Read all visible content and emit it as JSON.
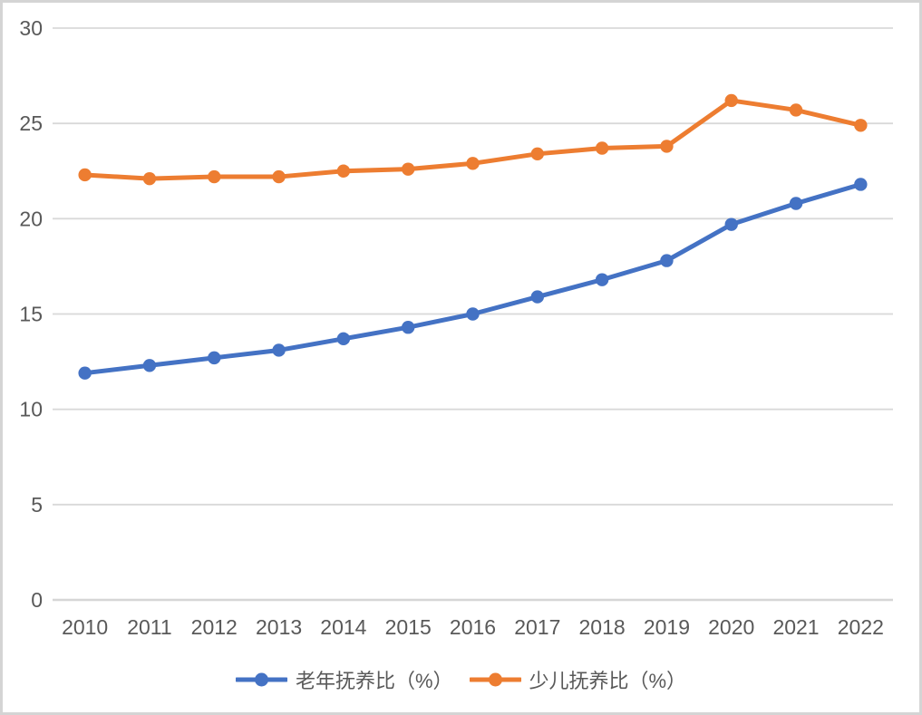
{
  "chart_data": {
    "type": "line",
    "title": "",
    "xlabel": "",
    "ylabel": "",
    "categories": [
      "2010",
      "2011",
      "2012",
      "2013",
      "2014",
      "2015",
      "2016",
      "2017",
      "2018",
      "2019",
      "2020",
      "2021",
      "2022"
    ],
    "series": [
      {
        "name": "老年抚养比（%）",
        "color": "#4472C4",
        "values": [
          11.9,
          12.3,
          12.7,
          13.1,
          13.7,
          14.3,
          15.0,
          15.9,
          16.8,
          17.8,
          19.7,
          20.8,
          21.8
        ]
      },
      {
        "name": "少儿抚养比（%）",
        "color": "#ED7D31",
        "values": [
          22.3,
          22.1,
          22.2,
          22.2,
          22.5,
          22.6,
          22.9,
          23.4,
          23.7,
          23.8,
          26.2,
          25.7,
          24.9
        ]
      }
    ],
    "ylim": [
      0,
      30
    ],
    "yticks": [
      0,
      5,
      10,
      15,
      20,
      25,
      30
    ],
    "grid": true,
    "legend_position": "bottom",
    "marker": "circle"
  },
  "colors": {
    "gridline": "#d9d9d9",
    "axis_line": "#d6d6d6",
    "tick_text": "#595959",
    "frame_border": "#d4d4d4",
    "background": "#ffffff"
  }
}
